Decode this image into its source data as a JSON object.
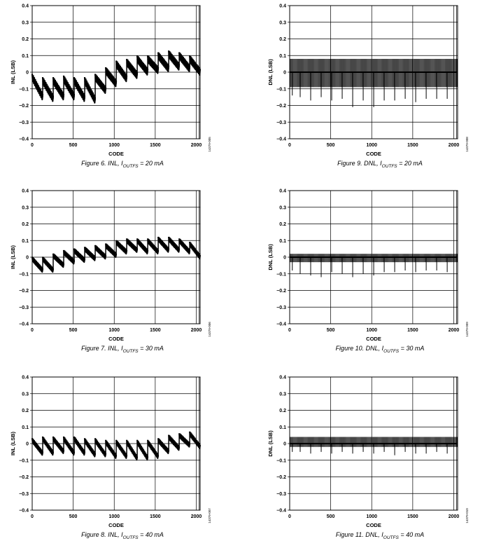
{
  "chart_data": [
    {
      "id": "fig6",
      "type": "line",
      "metric": "inl",
      "figure_label": "Figure 6. INL, ",
      "current_sym": "I",
      "current_sub": "OUTFS",
      "current_val": " = 20 mA",
      "xlabel": "CODE",
      "ylabel": "INL (LSB)",
      "side_code": "14379-005",
      "xlim": [
        0,
        2047
      ],
      "ylim": [
        -0.4,
        0.4
      ],
      "x_ticks": [
        "0",
        "500",
        "1000",
        "1500",
        "2000"
      ],
      "y_ticks": [
        "0.4",
        "0.3",
        "0.2",
        "0.1",
        "0",
        "−0.1",
        "−0.2",
        "−0.3",
        "−0.4"
      ],
      "grid": true,
      "series": [
        {
          "segments_x": [
            0,
            128,
            256,
            384,
            512,
            640,
            768,
            896,
            1024,
            1152,
            1280,
            1408,
            1536,
            1664,
            1792,
            1920,
            2047
          ],
          "segments_start": [
            -0.03,
            -0.05,
            -0.05,
            -0.04,
            -0.05,
            -0.05,
            -0.03,
            0.01,
            0.05,
            0.06,
            0.08,
            0.08,
            0.1,
            0.11,
            0.1,
            0.08
          ],
          "segments_end": [
            -0.15,
            -0.16,
            -0.15,
            -0.15,
            -0.16,
            -0.17,
            -0.11,
            -0.07,
            -0.04,
            -0.02,
            0.0,
            0.01,
            0.02,
            0.03,
            0.02,
            0.0
          ],
          "ripple": 0.04
        }
      ]
    },
    {
      "id": "fig7",
      "type": "line",
      "metric": "inl",
      "figure_label": "Figure 7. INL, ",
      "current_sym": "I",
      "current_sub": "OUTFS",
      "current_val": " = 30 mA",
      "xlabel": "CODE",
      "ylabel": "INL (LSB)",
      "side_code": "14379-006",
      "xlim": [
        0,
        2047
      ],
      "ylim": [
        -0.4,
        0.4
      ],
      "x_ticks": [
        "0",
        "500",
        "1000",
        "1500",
        "2000"
      ],
      "y_ticks": [
        "0.4",
        "0.3",
        "0.2",
        "0.1",
        "0",
        "−0.1",
        "−0.2",
        "−0.3",
        "−0.4"
      ],
      "grid": true,
      "series": [
        {
          "segments_x": [
            0,
            128,
            256,
            384,
            512,
            640,
            768,
            896,
            1024,
            1152,
            1280,
            1408,
            1536,
            1664,
            1792,
            1920,
            2047
          ],
          "segments_start": [
            -0.01,
            -0.01,
            0.01,
            0.03,
            0.04,
            0.05,
            0.06,
            0.07,
            0.09,
            0.1,
            0.1,
            0.1,
            0.11,
            0.11,
            0.1,
            0.08
          ],
          "segments_end": [
            -0.08,
            -0.08,
            -0.05,
            -0.03,
            -0.02,
            -0.01,
            0.0,
            0.01,
            0.03,
            0.04,
            0.03,
            0.03,
            0.04,
            0.04,
            0.03,
            0.0
          ],
          "ripple": 0.025
        }
      ]
    },
    {
      "id": "fig8",
      "type": "line",
      "metric": "inl",
      "figure_label": "Figure 8. INL, ",
      "current_sym": "I",
      "current_sub": "OUTFS",
      "current_val": " = 40 mA",
      "xlabel": "CODE",
      "ylabel": "INL (LSB)",
      "side_code": "14379-007",
      "xlim": [
        0,
        2047
      ],
      "ylim": [
        -0.4,
        0.4
      ],
      "x_ticks": [
        "0",
        "500",
        "1000",
        "1500",
        "2000"
      ],
      "y_ticks": [
        "0.4",
        "0.3",
        "0.2",
        "0.1",
        "0",
        "−0.1",
        "−0.2",
        "−0.3",
        "−0.4"
      ],
      "grid": true,
      "series": [
        {
          "segments_x": [
            0,
            128,
            256,
            384,
            512,
            640,
            768,
            896,
            1024,
            1152,
            1280,
            1408,
            1536,
            1664,
            1792,
            1920,
            2047
          ],
          "segments_start": [
            0.02,
            0.03,
            0.03,
            0.03,
            0.03,
            0.02,
            0.02,
            0.01,
            0.01,
            0.01,
            0.01,
            0.01,
            0.02,
            0.04,
            0.05,
            0.06
          ],
          "segments_end": [
            -0.06,
            -0.06,
            -0.05,
            -0.06,
            -0.06,
            -0.07,
            -0.07,
            -0.08,
            -0.08,
            -0.09,
            -0.09,
            -0.08,
            -0.05,
            -0.03,
            -0.01,
            -0.02
          ],
          "ripple": 0.025
        }
      ]
    },
    {
      "id": "fig9",
      "type": "line",
      "metric": "dnl",
      "figure_label": "Figure 9. DNL, ",
      "current_sym": "I",
      "current_sub": "OUTFS",
      "current_val": " = 20 mA",
      "xlabel": "CODE",
      "ylabel": "DNL (LSB)",
      "side_code": "14379-008",
      "xlim": [
        0,
        2047
      ],
      "ylim": [
        -0.4,
        0.4
      ],
      "x_ticks": [
        "0",
        "500",
        "1000",
        "1500",
        "2000"
      ],
      "y_ticks": [
        "0.4",
        "0.3",
        "0.2",
        "0.1",
        "0",
        "−0.1",
        "−0.2",
        "−0.3",
        "−0.4"
      ],
      "grid": true,
      "series": [
        {
          "band_high": 0.08,
          "band_low": -0.09,
          "spike_x": [
            32,
            128,
            256,
            384,
            512,
            640,
            768,
            896,
            1024,
            1152,
            1280,
            1408,
            1536,
            1664,
            1792,
            1920,
            2047
          ],
          "spike_y": [
            -0.14,
            -0.15,
            -0.17,
            -0.15,
            -0.17,
            -0.16,
            -0.21,
            -0.17,
            -0.21,
            -0.17,
            -0.17,
            -0.16,
            -0.18,
            -0.16,
            -0.16,
            -0.16,
            -0.16
          ]
        }
      ]
    },
    {
      "id": "fig10",
      "type": "line",
      "metric": "dnl",
      "figure_label": "Figure 10. DNL, ",
      "current_sym": "I",
      "current_sub": "OUTFS",
      "current_val": " = 30 mA",
      "xlabel": "CODE",
      "ylabel": "DNL (LSB)",
      "side_code": "14379-009",
      "xlim": [
        0,
        2047
      ],
      "ylim": [
        -0.4,
        0.4
      ],
      "x_ticks": [
        "0",
        "500",
        "1000",
        "1500",
        "2000"
      ],
      "y_ticks": [
        "0.4",
        "0.3",
        "0.2",
        "0.1",
        "0",
        "−0.1",
        "−0.2",
        "−0.3",
        "−0.4"
      ],
      "grid": true,
      "series": [
        {
          "band_high": 0.02,
          "band_low": -0.03,
          "spike_x": [
            32,
            128,
            256,
            384,
            512,
            640,
            768,
            896,
            1024,
            1152,
            1280,
            1408,
            1536,
            1664,
            1792,
            1920,
            2047
          ],
          "spike_y": [
            -0.08,
            -0.1,
            -0.11,
            -0.12,
            -0.09,
            -0.1,
            -0.12,
            -0.1,
            -0.11,
            -0.09,
            -0.09,
            -0.08,
            -0.09,
            -0.08,
            -0.08,
            -0.09,
            -0.08
          ]
        }
      ]
    },
    {
      "id": "fig11",
      "type": "line",
      "metric": "dnl",
      "figure_label": "Figure 11. DNL, ",
      "current_sym": "I",
      "current_sub": "OUTFS",
      "current_val": " = 40 mA",
      "xlabel": "CODE",
      "ylabel": "DNL (LSB)",
      "side_code": "14379-010",
      "xlim": [
        0,
        2047
      ],
      "ylim": [
        -0.4,
        0.4
      ],
      "x_ticks": [
        "0",
        "500",
        "1000",
        "1500",
        "2000"
      ],
      "y_ticks": [
        "0.4",
        "0.3",
        "0.2",
        "0.1",
        "0",
        "−0.1",
        "−0.2",
        "−0.3",
        "−0.4"
      ],
      "grid": true,
      "series": [
        {
          "band_high": 0.04,
          "band_low": -0.02,
          "spike_x": [
            32,
            128,
            256,
            384,
            512,
            640,
            768,
            896,
            1024,
            1152,
            1280,
            1408,
            1536,
            1664,
            1792,
            1920,
            2047
          ],
          "spike_y": [
            -0.05,
            -0.05,
            -0.06,
            -0.05,
            -0.06,
            -0.05,
            -0.06,
            -0.05,
            -0.06,
            -0.05,
            -0.07,
            -0.05,
            -0.06,
            -0.06,
            -0.05,
            -0.06,
            -0.05
          ]
        }
      ]
    }
  ]
}
